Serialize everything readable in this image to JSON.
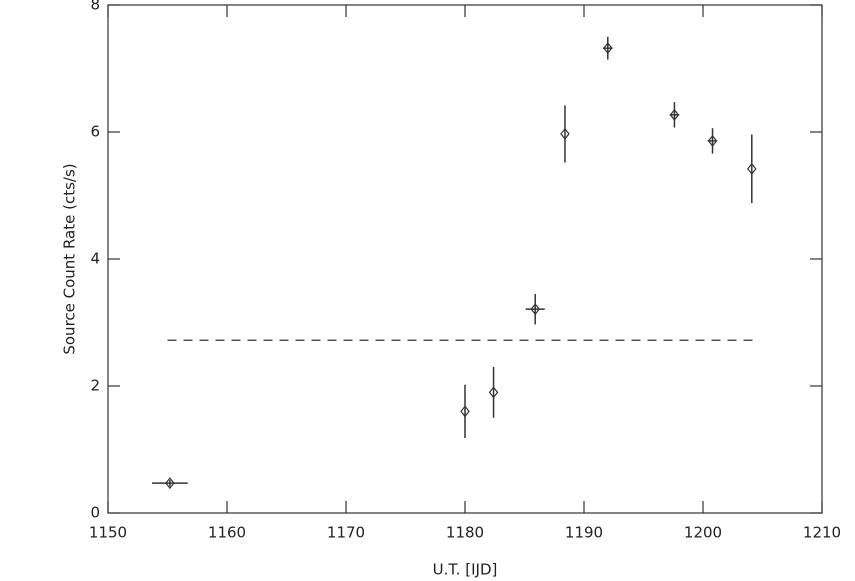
{
  "chart_data": {
    "type": "scatter",
    "xlabel": "U.T. [IJD]",
    "ylabel": "Source Count Rate (cts/s)",
    "xlim": [
      1150,
      1210
    ],
    "ylim": [
      0,
      8
    ],
    "xticks": [
      1150,
      1160,
      1170,
      1180,
      1190,
      1200,
      1210
    ],
    "yticks": [
      0,
      2,
      4,
      6,
      8
    ],
    "series": [
      {
        "color": "#333333",
        "x": [
          1155.2,
          1180.0,
          1182.4,
          1185.9,
          1188.4,
          1192.0,
          1197.6,
          1200.8,
          1204.1
        ],
        "values": [
          0.47,
          1.6,
          1.9,
          3.21,
          5.97,
          7.32,
          6.27,
          5.86,
          5.42
        ],
        "errors": [
          0.05,
          0.42,
          0.4,
          0.24,
          0.45,
          0.18,
          0.2,
          0.2,
          0.54
        ],
        "xerrors": [
          1.5,
          0,
          0,
          0.8,
          0,
          0.4,
          0.4,
          0.4,
          0
        ]
      }
    ],
    "hline": {
      "y": 2.72,
      "xmin": 1155,
      "xmax": 1204.5,
      "style": "dashed"
    }
  }
}
